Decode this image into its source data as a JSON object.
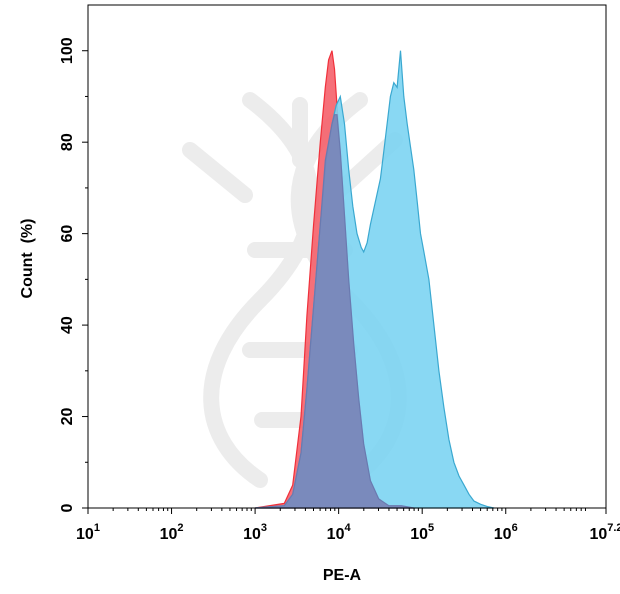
{
  "chart_data": {
    "type": "area",
    "xlabel": "PE-A",
    "ylabel": "Count  (%)",
    "x_scale": "log10",
    "xlim": [
      1,
      7.2
    ],
    "ylim": [
      0,
      110
    ],
    "grid": false,
    "legend": "none",
    "x_ticks": [
      {
        "base": "10",
        "exp": "1",
        "value": 1
      },
      {
        "base": "10",
        "exp": "2",
        "value": 2
      },
      {
        "base": "10",
        "exp": "3",
        "value": 3
      },
      {
        "base": "10",
        "exp": "4",
        "value": 4
      },
      {
        "base": "10",
        "exp": "5",
        "value": 5
      },
      {
        "base": "10",
        "exp": "6",
        "value": 6
      },
      {
        "base": "10",
        "exp": "7.2",
        "value": 7.2
      }
    ],
    "y_ticks": [
      {
        "label": "0",
        "value": 0
      },
      {
        "label": "20",
        "value": 20
      },
      {
        "label": "40",
        "value": 40
      },
      {
        "label": "60",
        "value": 60
      },
      {
        "label": "80",
        "value": 80
      },
      {
        "label": "100",
        "value": 100
      }
    ],
    "series": [
      {
        "color": "#f0303a",
        "fill": "#f5606a",
        "x": [
          3.0,
          3.35,
          3.45,
          3.55,
          3.62,
          3.7,
          3.78,
          3.84,
          3.88,
          3.92,
          3.95,
          3.98,
          4.02,
          4.07,
          4.12,
          4.18,
          4.24,
          4.3,
          4.38,
          4.48,
          4.6,
          4.75,
          4.9
        ],
        "y": [
          0,
          1,
          5,
          20,
          42,
          62,
          80,
          92,
          98,
          100,
          96,
          88,
          78,
          64,
          50,
          36,
          24,
          14,
          6,
          2,
          0.5,
          0.5,
          0
        ]
      },
      {
        "color": "#3aa8d0",
        "fill": "#7cd4f2",
        "x": [
          3.0,
          3.35,
          3.45,
          3.55,
          3.62,
          3.7,
          3.78,
          3.85,
          3.92,
          3.97,
          4.02,
          4.07,
          4.12,
          4.17,
          4.22,
          4.27,
          4.3,
          4.34,
          4.38,
          4.44,
          4.5,
          4.54,
          4.58,
          4.62,
          4.66,
          4.7,
          4.74,
          4.78,
          4.82,
          4.86,
          4.9,
          4.94,
          4.98,
          5.02,
          5.08,
          5.14,
          5.2,
          5.26,
          5.32,
          5.38,
          5.44,
          5.5,
          5.56,
          5.62,
          5.7,
          5.78,
          5.86
        ],
        "y": [
          0,
          0.5,
          3,
          12,
          26,
          44,
          62,
          76,
          84,
          88,
          90,
          84,
          74,
          66,
          60,
          57,
          56,
          58,
          62,
          67,
          72,
          78,
          84,
          90,
          93,
          92,
          100,
          90,
          84,
          79,
          74,
          67,
          60,
          56,
          50,
          40,
          30,
          22,
          15,
          10,
          7,
          5,
          3,
          1.5,
          0.8,
          0.3,
          0
        ]
      },
      {
        "color": "#6a7ab0",
        "fill": "#7884b8",
        "x": [
          3.0,
          3.35,
          3.45,
          3.55,
          3.62,
          3.7,
          3.78,
          3.84,
          3.88,
          3.92,
          3.95,
          3.98,
          4.02,
          4.07,
          4.12,
          4.18,
          4.24,
          4.3,
          4.38,
          4.48,
          4.6,
          4.75,
          4.9
        ],
        "y": [
          0,
          0.5,
          3,
          12,
          26,
          44,
          62,
          76,
          80,
          84,
          86,
          86,
          78,
          64,
          50,
          36,
          24,
          14,
          6,
          2,
          0.5,
          0.5,
          0
        ]
      }
    ]
  }
}
